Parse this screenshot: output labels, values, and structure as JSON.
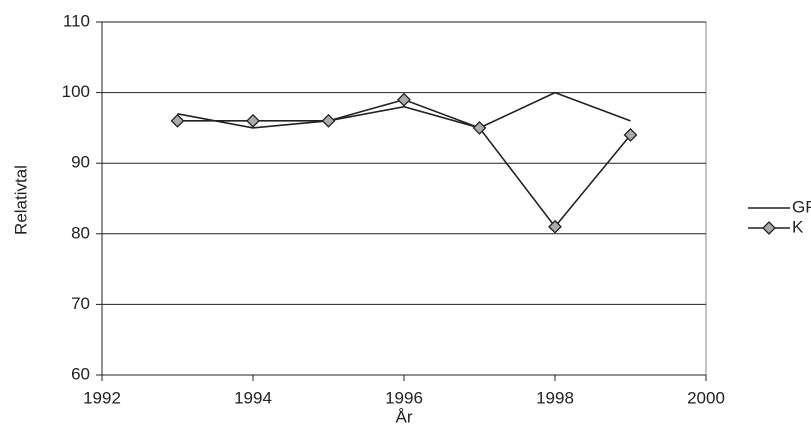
{
  "chart_data": {
    "type": "line",
    "x_label": "År",
    "y_label": "Relativtal",
    "x": [
      1993,
      1994,
      1995,
      1996,
      1997,
      1998,
      1999
    ],
    "series": [
      {
        "name": "GP",
        "color": "#222222",
        "marker": false,
        "values": [
          97,
          95,
          96,
          98,
          95,
          100,
          96
        ]
      },
      {
        "name": "K",
        "color": "#222222",
        "marker": true,
        "values": [
          96,
          96,
          96,
          99,
          95,
          81,
          94
        ]
      }
    ],
    "xlim": [
      1992,
      2000
    ],
    "xticks": [
      1992,
      1994,
      1996,
      1998,
      2000
    ],
    "ylim": [
      60,
      110
    ],
    "yticks": [
      60,
      70,
      80,
      90,
      100,
      110
    ],
    "grid": true,
    "legend": "right"
  }
}
